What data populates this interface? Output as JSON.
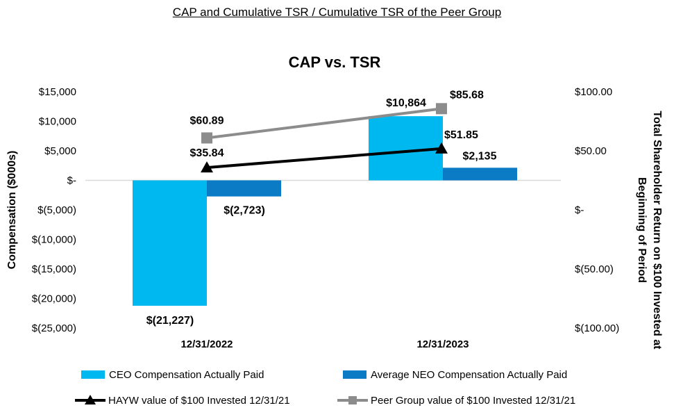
{
  "page": {
    "header": "CAP and Cumulative TSR / Cumulative TSR of the Peer Group"
  },
  "chart_data": {
    "type": "bar",
    "title": "CAP vs. TSR",
    "categories": [
      "12/31/2022",
      "12/31/2023"
    ],
    "ylabel": "Compensation ($000s)",
    "y2label_line1": "Total Shareholder Return on $100 Invested at",
    "y2label_line2": "Beginning of Period",
    "ylim": [
      -25000,
      15000
    ],
    "y2lim": [
      -100,
      100
    ],
    "y_ticks": [
      {
        "value": 15000,
        "label": "$15,000"
      },
      {
        "value": 10000,
        "label": "$10,000"
      },
      {
        "value": 5000,
        "label": "$5,000"
      },
      {
        "value": 0,
        "label": "$-"
      },
      {
        "value": -5000,
        "label": "$(5,000)"
      },
      {
        "value": -10000,
        "label": "$(10,000)"
      },
      {
        "value": -15000,
        "label": "$(15,000)"
      },
      {
        "value": -20000,
        "label": "$(20,000)"
      },
      {
        "value": -25000,
        "label": "$(25,000)"
      }
    ],
    "y2_ticks": [
      {
        "value": 100,
        "label": "$100.00"
      },
      {
        "value": 50,
        "label": "$50.00"
      },
      {
        "value": 0,
        "label": "$-"
      },
      {
        "value": -50,
        "label": "$(50.00)"
      },
      {
        "value": -100,
        "label": "$(100.00)"
      }
    ],
    "bar_series": [
      {
        "name": "CEO Compensation Actually Paid",
        "color": "#00b8f0",
        "values": [
          -21227,
          10864
        ],
        "labels": [
          "$(21,227)",
          "$10,864"
        ]
      },
      {
        "name": "Average NEO Compensation Actually Paid",
        "color": "#0a7bc4",
        "values": [
          -2723,
          2135
        ],
        "labels": [
          "$(2,723)",
          "$2,135"
        ]
      }
    ],
    "line_series": [
      {
        "name": "HAYW value of $100 Invested 12/31/21",
        "color": "#000000",
        "marker": "triangle",
        "values": [
          35.84,
          51.85
        ],
        "labels": [
          "$35.84",
          "$51.85"
        ]
      },
      {
        "name": "Peer Group value of $100 Invested 12/31/21",
        "color": "#8c8c8c",
        "marker": "square",
        "values": [
          60.89,
          85.68
        ],
        "labels": [
          "$60.89",
          "$85.68"
        ]
      }
    ]
  }
}
